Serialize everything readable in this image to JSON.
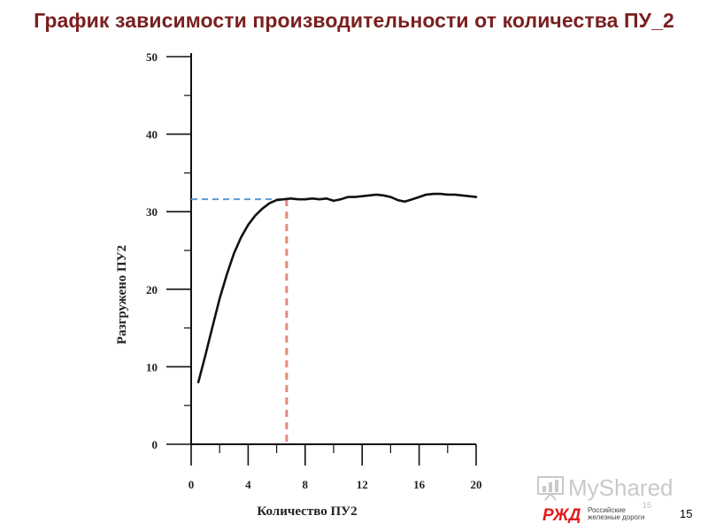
{
  "slide": {
    "title": "График зависимости производительности от количества ПУ_2",
    "page_number": "15",
    "page_number_small": "15"
  },
  "watermark": {
    "text": "MyShared",
    "icon": "presentation-board-icon"
  },
  "logo": {
    "name": "rzd-logo",
    "text": "Российские\nжелезные дороги",
    "color": "#e21a1a"
  },
  "colors": {
    "title": "#7a1f1f",
    "curve": "#111111",
    "h_guide": "#5b9bd5",
    "v_guide": "#e8887a"
  },
  "chart_data": {
    "type": "line",
    "title": "",
    "xlabel": "Количество ПУ2",
    "ylabel": "Разгружено ПУ2",
    "xlim": [
      0,
      20
    ],
    "ylim": [
      0,
      50
    ],
    "x_ticks": [
      0,
      4,
      8,
      12,
      16,
      20
    ],
    "y_ticks": [
      0,
      10,
      20,
      30,
      40,
      50
    ],
    "series": [
      {
        "x": [
          0.5,
          1.0,
          1.5,
          2.0,
          2.5,
          3.0,
          3.5,
          4.0,
          4.5,
          5.0,
          5.5,
          6.0,
          6.5,
          7.0,
          7.5,
          8.0,
          8.5,
          9.0,
          9.5,
          10.0,
          10.5,
          11.0,
          11.5,
          12.0,
          12.5,
          13.0,
          13.5,
          14.0,
          14.5,
          15.0,
          15.5,
          16.0,
          16.5,
          17.0,
          17.5,
          18.0,
          18.5,
          19.0,
          19.5,
          20.0
        ],
        "y": [
          8.0,
          11.5,
          15.2,
          18.8,
          21.9,
          24.6,
          26.7,
          28.3,
          29.5,
          30.4,
          31.1,
          31.5,
          31.6,
          31.7,
          31.6,
          31.6,
          31.7,
          31.6,
          31.7,
          31.4,
          31.6,
          31.9,
          31.9,
          32.0,
          32.1,
          32.2,
          32.1,
          31.9,
          31.5,
          31.3,
          31.6,
          31.9,
          32.2,
          32.3,
          32.3,
          32.2,
          32.2,
          32.1,
          32.0,
          31.9
        ]
      }
    ],
    "guides": {
      "x": 6.7,
      "y": 31.6
    }
  }
}
